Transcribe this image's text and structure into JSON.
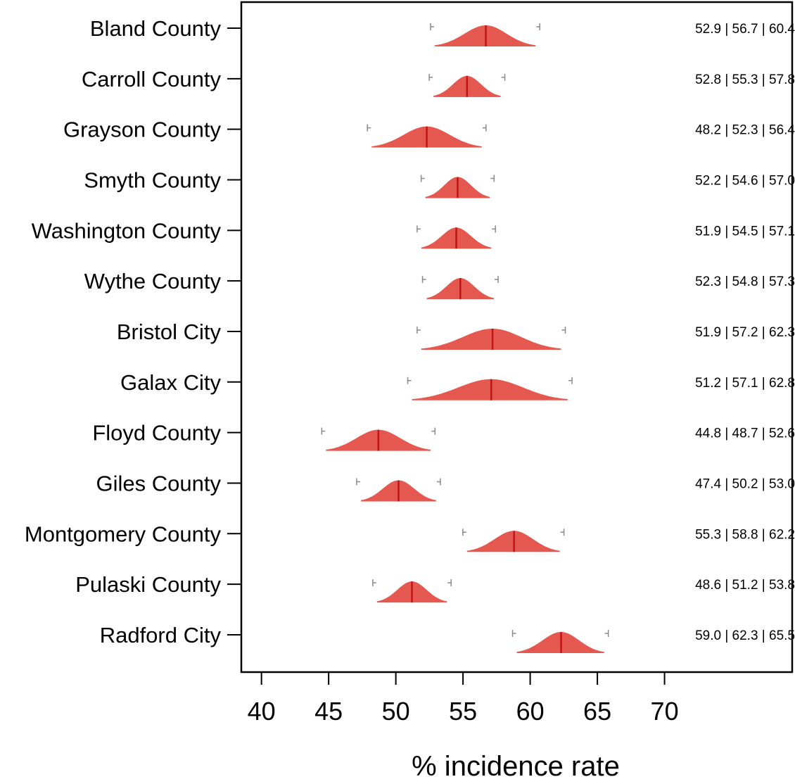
{
  "chart_data": {
    "type": "forest-density",
    "xlabel": "% incidence rate",
    "xlim": [
      38.5,
      79.5
    ],
    "xticks": [
      40,
      45,
      50,
      55,
      60,
      65,
      70
    ],
    "tick_labels": [
      "40",
      "45",
      "50",
      "55",
      "60",
      "65",
      "70"
    ],
    "colors": {
      "fill": "#e5584f",
      "median_line": "#c0141a",
      "ci_whisker": "#8a8a8a",
      "axis": "#000000"
    },
    "rows": [
      {
        "category": "Bland County",
        "low": 52.9,
        "median": 56.7,
        "high": 60.4,
        "label": "52.9 | 56.7 | 60.4"
      },
      {
        "category": "Carroll County",
        "low": 52.8,
        "median": 55.3,
        "high": 57.8,
        "label": "52.8 | 55.3 | 57.8"
      },
      {
        "category": "Grayson County",
        "low": 48.2,
        "median": 52.3,
        "high": 56.4,
        "label": "48.2 | 52.3 | 56.4"
      },
      {
        "category": "Smyth County",
        "low": 52.2,
        "median": 54.6,
        "high": 57.0,
        "label": "52.2 | 54.6 | 57.0"
      },
      {
        "category": "Washington County",
        "low": 51.9,
        "median": 54.5,
        "high": 57.1,
        "label": "51.9 | 54.5 | 57.1"
      },
      {
        "category": "Wythe County",
        "low": 52.3,
        "median": 54.8,
        "high": 57.3,
        "label": "52.3 | 54.8 | 57.3"
      },
      {
        "category": "Bristol City",
        "low": 51.9,
        "median": 57.2,
        "high": 62.3,
        "label": "51.9 | 57.2 | 62.3"
      },
      {
        "category": "Galax City",
        "low": 51.2,
        "median": 57.1,
        "high": 62.8,
        "label": "51.2 | 57.1 | 62.8"
      },
      {
        "category": "Floyd County",
        "low": 44.8,
        "median": 48.7,
        "high": 52.6,
        "label": "44.8 | 48.7 | 52.6"
      },
      {
        "category": "Giles County",
        "low": 47.4,
        "median": 50.2,
        "high": 53.0,
        "label": "47.4 | 50.2 | 53.0"
      },
      {
        "category": "Montgomery County",
        "low": 55.3,
        "median": 58.8,
        "high": 62.2,
        "label": "55.3 | 58.8 | 62.2"
      },
      {
        "category": "Pulaski County",
        "low": 48.6,
        "median": 51.2,
        "high": 53.8,
        "label": "48.6 | 51.2 | 53.8"
      },
      {
        "category": "Radford City",
        "low": 59.0,
        "median": 62.3,
        "high": 65.5,
        "label": "59.0 | 62.3 | 65.5"
      }
    ]
  }
}
